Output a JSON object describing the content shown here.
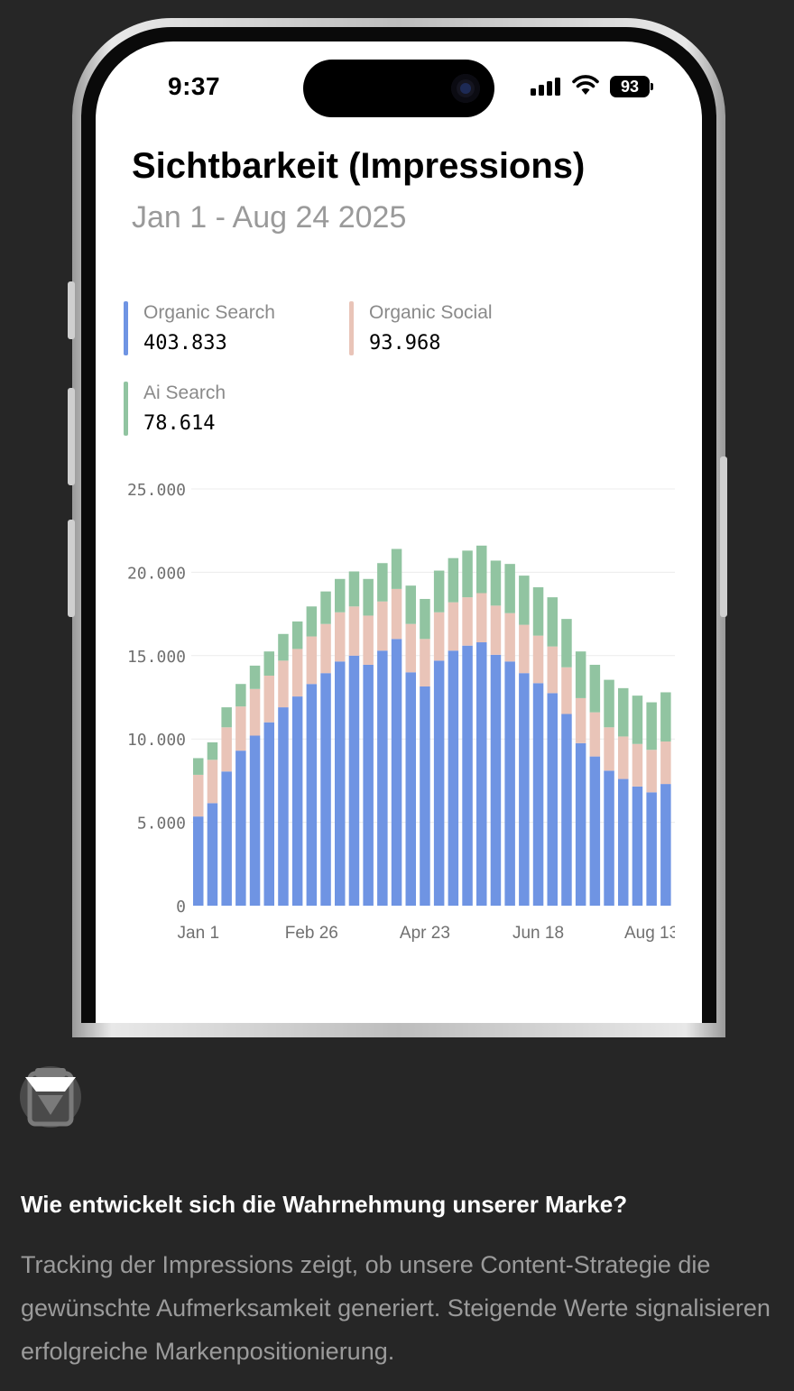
{
  "statusbar": {
    "time": "9:37",
    "battery": "93"
  },
  "card": {
    "title": "Sichtbarkeit (Impressions)",
    "subtitle": "Jan 1 - Aug 24 2025",
    "legend": [
      {
        "name": "Organic Search",
        "value": "403.833",
        "color": "#6f94e3"
      },
      {
        "name": "Organic Social",
        "value": "93.968",
        "color": "#e9c4b8"
      },
      {
        "name": "Ai Search",
        "value": "78.614",
        "color": "#91c4a1"
      }
    ]
  },
  "chart_data": {
    "type": "bar",
    "stacked": true,
    "title": "Sichtbarkeit (Impressions)",
    "x_tick_labels": [
      "Jan 1",
      "Feb 26",
      "Apr 23",
      "Jun 18",
      "Aug 13"
    ],
    "x_tick_indices": [
      0,
      8,
      16,
      24,
      32
    ],
    "ylim": [
      0,
      25000
    ],
    "y_ticks": [
      0,
      5000,
      10000,
      15000,
      20000,
      25000
    ],
    "y_tick_labels": [
      "0",
      "5.000",
      "10.000",
      "15.000",
      "20.000",
      "25.000"
    ],
    "grid": true,
    "series": [
      {
        "name": "Organic Search",
        "color": "#6f94e3",
        "values": [
          5350,
          6150,
          8050,
          9300,
          10200,
          11000,
          11900,
          12550,
          13300,
          13950,
          14650,
          15000,
          14450,
          15300,
          16000,
          14000,
          13150,
          14700,
          15300,
          15600,
          15800,
          15050,
          14650,
          13950,
          13350,
          12750,
          11500,
          9750,
          8950,
          8100,
          7600,
          7150,
          6800,
          7300
        ]
      },
      {
        "name": "Organic Social",
        "color": "#e9c4b8",
        "values": [
          2500,
          2600,
          2650,
          2650,
          2800,
          2800,
          2800,
          2850,
          2850,
          2950,
          2950,
          2950,
          2950,
          2950,
          3000,
          2900,
          2850,
          2900,
          2900,
          2900,
          2950,
          2950,
          2900,
          2900,
          2850,
          2800,
          2800,
          2700,
          2650,
          2600,
          2550,
          2550,
          2550,
          2550
        ]
      },
      {
        "name": "Ai Search",
        "color": "#91c4a1",
        "values": [
          1000,
          1050,
          1200,
          1350,
          1400,
          1450,
          1600,
          1650,
          1800,
          1950,
          2000,
          2100,
          2200,
          2300,
          2400,
          2300,
          2400,
          2500,
          2650,
          2800,
          2850,
          2700,
          2950,
          2950,
          2900,
          2950,
          2900,
          2800,
          2850,
          2850,
          2900,
          2900,
          2850,
          2950
        ]
      }
    ]
  },
  "footer": {
    "question": "Wie entwickelt sich die Wahrnehmung unserer Marke?",
    "description": "Tracking der Impressions zeigt, ob unsere Content-Strategie die gewünschte Aufmerksamkeit generiert. Steigende Werte signalisieren erfolgreiche Markenpositionierung."
  }
}
